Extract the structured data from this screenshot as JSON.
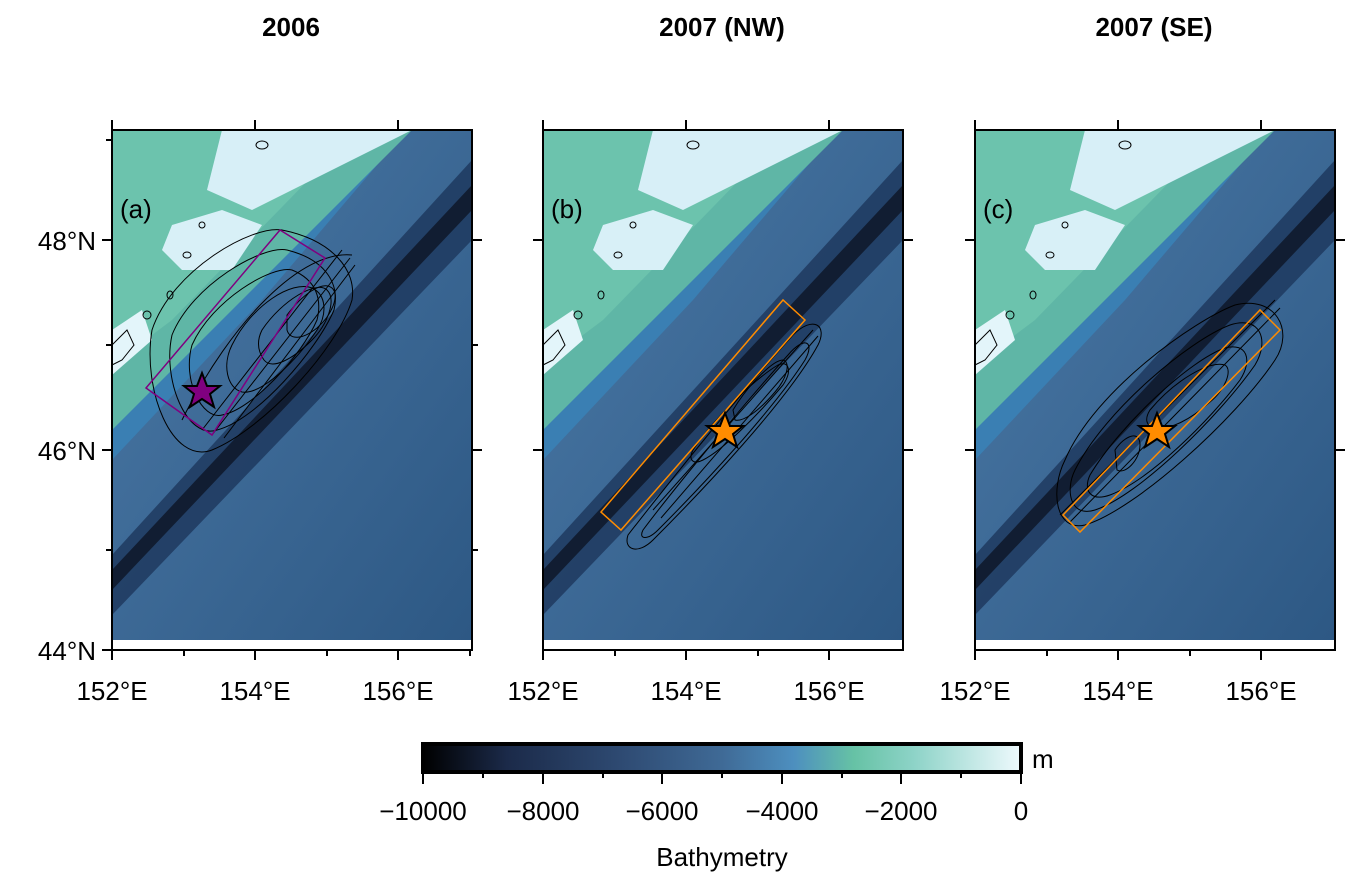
{
  "panels": [
    {
      "title": "2006",
      "label": "(a)",
      "rect_color": "#800080",
      "star_color": "#800080"
    },
    {
      "title": "2007 (NW)",
      "label": "(b)",
      "rect_color": "#ff8c00",
      "star_color": "#ff8c00"
    },
    {
      "title": "2007 (SE)",
      "label": "(c)",
      "rect_color": "#ff8c00",
      "star_color": "#ff8c00"
    }
  ],
  "map": {
    "lon_ticks": [
      "152°E",
      "154°E",
      "156°E"
    ],
    "lat_ticks": [
      "48°N",
      "46°N",
      "44°N"
    ]
  },
  "colorbar": {
    "unit": "m",
    "label": "Bathymetry",
    "tick_labels": [
      "−10000",
      "−8000",
      "−6000",
      "−4000",
      "−2000",
      "0"
    ],
    "colors": [
      "#000000",
      "#1b2a49",
      "#2e4a72",
      "#3f6a96",
      "#4d8fbf",
      "#66c2a5",
      "#8dd3c7",
      "#e6f5fb"
    ]
  }
}
